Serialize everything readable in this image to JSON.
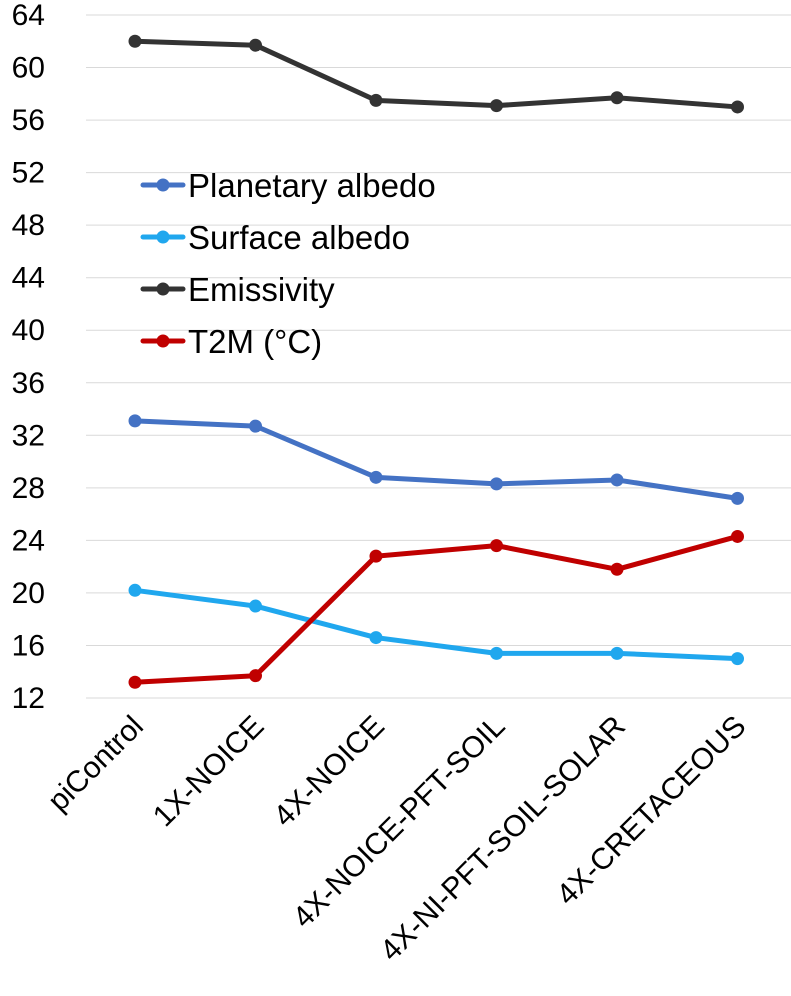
{
  "chart_data": {
    "type": "line",
    "title": "",
    "xlabel": "",
    "ylabel": "",
    "categories": [
      "piControl",
      "1X-NOICE",
      "4X-NOICE",
      "4X-NOICE-PFT-SOIL",
      "4X-NI-PFT-SOIL-SOLAR",
      "4X-CRETACEOUS"
    ],
    "ylim": [
      12,
      64
    ],
    "yticks": [
      12,
      16,
      20,
      24,
      28,
      32,
      36,
      40,
      44,
      48,
      52,
      56,
      60,
      64
    ],
    "grid": true,
    "legend_position": "center-left",
    "series": [
      {
        "name": "Planetary albedo",
        "color": "#4472c4",
        "values": [
          33.1,
          32.7,
          28.8,
          28.3,
          28.6,
          27.2
        ]
      },
      {
        "name": "Surface albedo",
        "color": "#20a7ee",
        "values": [
          20.2,
          19.0,
          16.6,
          15.4,
          15.4,
          15.0
        ]
      },
      {
        "name": "Emissivity",
        "color": "#333333",
        "values": [
          62.0,
          61.7,
          57.5,
          57.1,
          57.7,
          57.0
        ]
      },
      {
        "name": "T2M (°C)",
        "color": "#c00000",
        "values": [
          13.2,
          13.7,
          22.8,
          23.6,
          21.8,
          24.3
        ]
      }
    ]
  }
}
